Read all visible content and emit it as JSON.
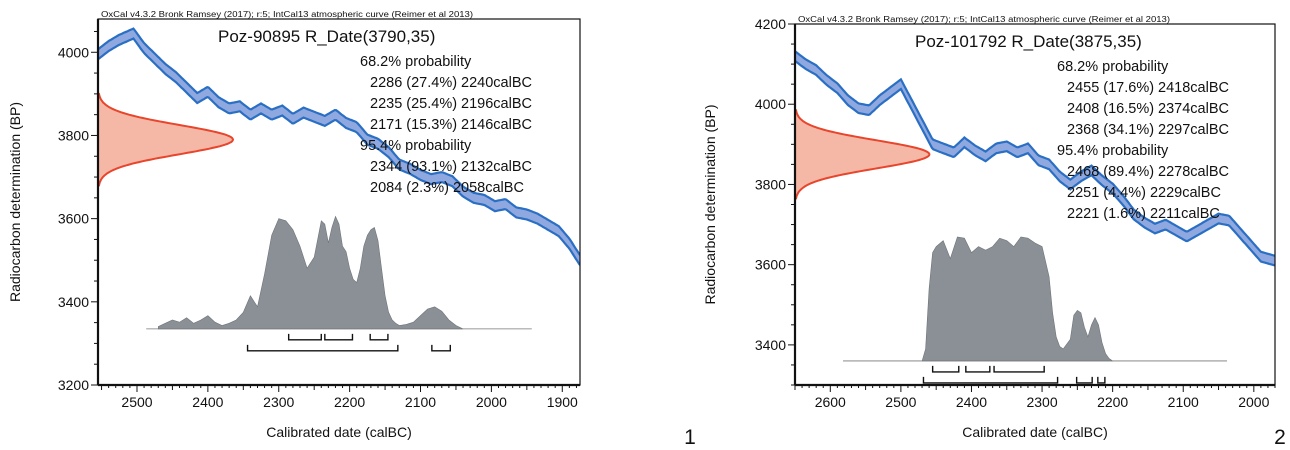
{
  "panels": [
    {
      "label": "1",
      "chart_data": {
        "type": "area",
        "header": "OxCal v4.3.2 Bronk Ramsey (2017); r:5; IntCal13 atmospheric curve (Reimer et al 2013)",
        "title": "Poz-90895 R_Date(3790,35)",
        "xlabel": "Calibrated date (calBC)",
        "ylabel": "Radiocarbon determination (BP)",
        "xlim": [
          2555,
          1875
        ],
        "ylim": [
          3200,
          4080
        ],
        "xticks": [
          2500,
          2400,
          2300,
          2200,
          2100,
          2000,
          1900
        ],
        "yticks": [
          3200,
          3400,
          3600,
          3800,
          4000
        ],
        "radiocarbon_mean": 3790,
        "radiocarbon_sd": 35,
        "calibration_curve": {
          "x": [
            2555,
            2540,
            2525,
            2505,
            2490,
            2475,
            2460,
            2445,
            2430,
            2415,
            2400,
            2385,
            2370,
            2355,
            2340,
            2325,
            2310,
            2295,
            2280,
            2265,
            2250,
            2235,
            2220,
            2205,
            2190,
            2175,
            2160,
            2145,
            2130,
            2115,
            2100,
            2085,
            2070,
            2055,
            2040,
            2025,
            2010,
            1995,
            1980,
            1965,
            1950,
            1935,
            1920,
            1905,
            1890,
            1875
          ],
          "y": [
            3995,
            4015,
            4030,
            4045,
            4010,
            3985,
            3960,
            3940,
            3915,
            3890,
            3905,
            3880,
            3865,
            3870,
            3850,
            3865,
            3850,
            3860,
            3840,
            3855,
            3845,
            3835,
            3850,
            3830,
            3820,
            3790,
            3780,
            3760,
            3730,
            3720,
            3705,
            3695,
            3700,
            3690,
            3665,
            3650,
            3645,
            3630,
            3635,
            3615,
            3610,
            3600,
            3585,
            3570,
            3540,
            3500
          ],
          "error": 12
        },
        "probability": {
          "baseline_bp": 3335,
          "x": [
            2470,
            2460,
            2450,
            2440,
            2430,
            2420,
            2410,
            2400,
            2390,
            2380,
            2370,
            2360,
            2350,
            2340,
            2330,
            2320,
            2310,
            2300,
            2290,
            2280,
            2270,
            2260,
            2250,
            2240,
            2235,
            2230,
            2225,
            2220,
            2215,
            2210,
            2205,
            2200,
            2195,
            2190,
            2185,
            2180,
            2175,
            2170,
            2165,
            2160,
            2155,
            2150,
            2145,
            2140,
            2135,
            2130,
            2120,
            2110,
            2100,
            2090,
            2080,
            2070,
            2060,
            2050,
            2040
          ],
          "y": [
            0.02,
            0.05,
            0.08,
            0.06,
            0.1,
            0.05,
            0.08,
            0.12,
            0.06,
            0.03,
            0.05,
            0.08,
            0.15,
            0.3,
            0.2,
            0.5,
            0.85,
            1.0,
            0.98,
            0.9,
            0.75,
            0.55,
            0.65,
            0.98,
            0.95,
            0.78,
            0.92,
            1.02,
            0.95,
            0.75,
            0.7,
            0.55,
            0.45,
            0.42,
            0.55,
            0.75,
            0.85,
            0.9,
            0.92,
            0.8,
            0.55,
            0.3,
            0.15,
            0.08,
            0.05,
            0.03,
            0.04,
            0.06,
            0.12,
            0.18,
            0.2,
            0.16,
            0.08,
            0.03,
            0.0
          ]
        },
        "probability_scale_bp": 265,
        "stats": [
          {
            "heading": "68.2% probability"
          },
          {
            "from": "2286",
            "pct": "(27.4%)",
            "to": "2240calBC"
          },
          {
            "from": "2235",
            "pct": "(25.4%)",
            "to": "2196calBC"
          },
          {
            "from": "2171",
            "pct": "(15.3%)",
            "to": "2146calBC"
          },
          {
            "heading": "95.4% probability"
          },
          {
            "from": "2344",
            "pct": "(93.1%)",
            "to": "2132calBC"
          },
          {
            "from": "2084",
            "pct": "(2.3%)",
            "to": "2058calBC"
          }
        ],
        "ranges_68": [
          [
            2286,
            2240
          ],
          [
            2235,
            2196
          ],
          [
            2171,
            2146
          ]
        ],
        "ranges_95": [
          [
            2344,
            2132
          ],
          [
            2084,
            2058
          ]
        ]
      }
    },
    {
      "label": "2",
      "chart_data": {
        "type": "area",
        "header": "OxCal v4.3.2 Bronk Ramsey (2017); r:5; IntCal13 atmospheric curve (Reimer et al 2013)",
        "title": "Poz-101792 R_Date(3875,35)",
        "xlabel": "Calibrated date (calBC)",
        "ylabel": "Radiocarbon determination (BP)",
        "xlim": [
          2650,
          1970
        ],
        "ylim": [
          3300,
          4200
        ],
        "xticks": [
          2600,
          2500,
          2400,
          2300,
          2200,
          2100,
          2000
        ],
        "yticks": [
          3400,
          3600,
          3800,
          4000,
          4200
        ],
        "radiocarbon_mean": 3875,
        "radiocarbon_sd": 35,
        "calibration_curve": {
          "x": [
            2650,
            2635,
            2620,
            2605,
            2590,
            2575,
            2560,
            2545,
            2530,
            2515,
            2500,
            2485,
            2470,
            2455,
            2440,
            2425,
            2410,
            2395,
            2380,
            2365,
            2350,
            2335,
            2320,
            2305,
            2290,
            2275,
            2260,
            2245,
            2230,
            2215,
            2200,
            2185,
            2170,
            2155,
            2140,
            2125,
            2110,
            2095,
            2080,
            2065,
            2050,
            2035,
            2020,
            2005,
            1990,
            1970
          ],
          "y": [
            4120,
            4100,
            4085,
            4060,
            4040,
            4010,
            3990,
            3985,
            4010,
            4030,
            4050,
            4000,
            3950,
            3900,
            3890,
            3880,
            3905,
            3885,
            3870,
            3890,
            3895,
            3880,
            3890,
            3860,
            3850,
            3820,
            3800,
            3820,
            3835,
            3810,
            3790,
            3760,
            3725,
            3705,
            3690,
            3700,
            3685,
            3670,
            3685,
            3700,
            3715,
            3710,
            3680,
            3650,
            3620,
            3610
          ],
          "error": 12
        },
        "probability": {
          "baseline_bp": 3360,
          "x": [
            2470,
            2465,
            2460,
            2455,
            2450,
            2440,
            2430,
            2420,
            2410,
            2400,
            2390,
            2380,
            2370,
            2360,
            2350,
            2340,
            2330,
            2320,
            2310,
            2300,
            2290,
            2285,
            2280,
            2275,
            2270,
            2265,
            2260,
            2255,
            2250,
            2245,
            2240,
            2235,
            2230,
            2225,
            2220,
            2215,
            2210,
            2205,
            2200
          ],
          "y": [
            0.0,
            0.1,
            0.6,
            0.9,
            0.95,
            1.0,
            0.85,
            1.03,
            1.02,
            0.9,
            0.95,
            0.92,
            0.95,
            1.02,
            1.0,
            0.95,
            1.03,
            1.02,
            0.98,
            0.95,
            0.7,
            0.4,
            0.2,
            0.12,
            0.1,
            0.14,
            0.18,
            0.38,
            0.42,
            0.4,
            0.28,
            0.2,
            0.3,
            0.36,
            0.3,
            0.15,
            0.06,
            0.02,
            0.0
          ]
        },
        "probability_scale_bp": 300,
        "stats": [
          {
            "heading": "68.2% probability"
          },
          {
            "from": "2455",
            "pct": "(17.6%)",
            "to": "2418calBC"
          },
          {
            "from": "2408",
            "pct": "(16.5%)",
            "to": "2374calBC"
          },
          {
            "from": "2368",
            "pct": "(34.1%)",
            "to": "2297calBC"
          },
          {
            "heading": "95.4% probability"
          },
          {
            "from": "2468",
            "pct": "(89.4%)",
            "to": "2278calBC"
          },
          {
            "from": "2251",
            "pct": "(4.4%)",
            "to": "2229calBC"
          },
          {
            "from": "2221",
            "pct": "(1.6%)",
            "to": "2211calBC"
          }
        ],
        "ranges_68": [
          [
            2455,
            2418
          ],
          [
            2408,
            2374
          ],
          [
            2368,
            2297
          ]
        ],
        "ranges_95": [
          [
            2468,
            2278
          ],
          [
            2251,
            2229
          ],
          [
            2221,
            2211
          ]
        ]
      }
    }
  ],
  "colors": {
    "curve": "#2a6fc4",
    "curve_fill": "#8fa9e0",
    "gaussian_line": "#e8452c",
    "gaussian_fill": "#f6b8a6",
    "probability_fill": "#8a9096",
    "axis": "#111111"
  }
}
